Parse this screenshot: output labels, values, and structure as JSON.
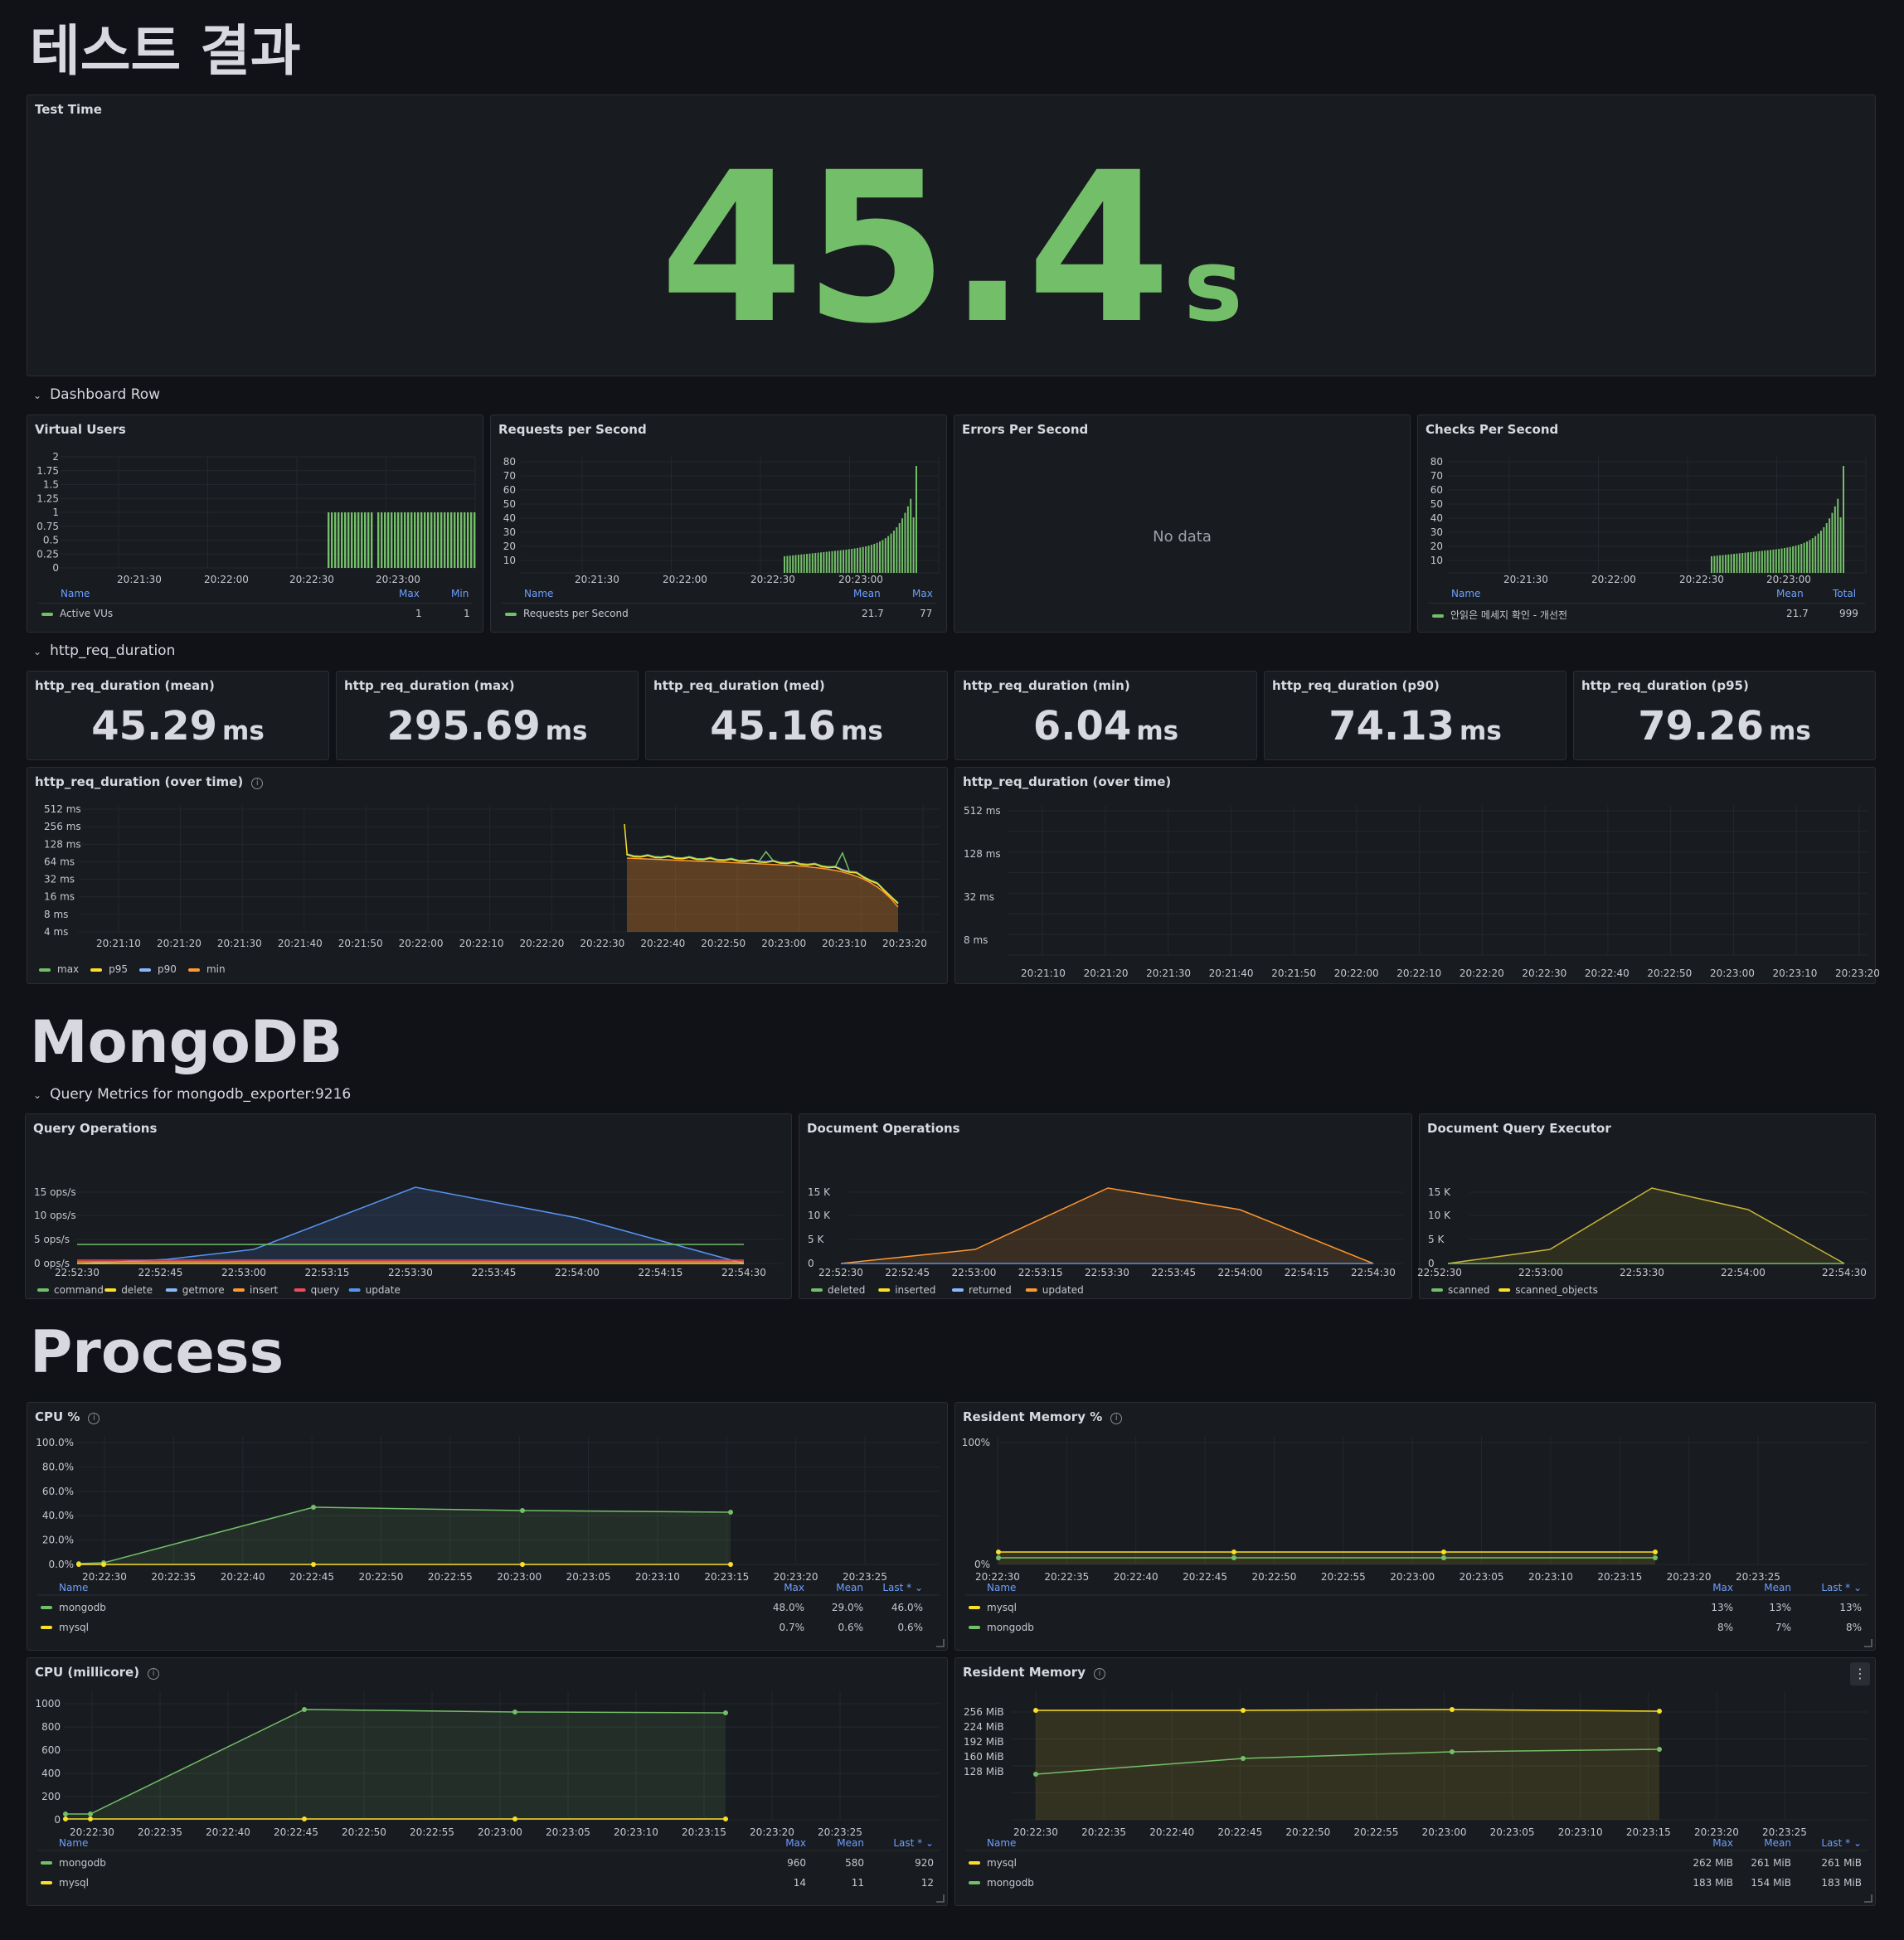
{
  "page_title": "테스트 결과",
  "test_time": {
    "title": "Test Time",
    "value": "45.4",
    "unit": "s",
    "color": "#73bf69"
  },
  "rows": {
    "dashboard": "Dashboard Row",
    "http": "http_req_duration",
    "mongo": "Query Metrics for mongodb_exporter:9216"
  },
  "sections": {
    "mongodb": "MongoDB",
    "process": "Process"
  },
  "vus": {
    "title": "Virtual Users",
    "yticks": [
      "2",
      "1.75",
      "1.5",
      "1.25",
      "1",
      "0.75",
      "0.5",
      "0.25",
      "0"
    ],
    "xticks": [
      "20:21:30",
      "20:22:00",
      "20:22:30",
      "20:23:00"
    ],
    "legend": {
      "h_name": "Name",
      "h1": "Max",
      "h2": "Min",
      "name": "Active VUs",
      "v1": "1",
      "v2": "1"
    }
  },
  "rps": {
    "title": "Requests per Second",
    "yticks": [
      "80",
      "70",
      "60",
      "50",
      "40",
      "30",
      "20",
      "10"
    ],
    "xticks": [
      "20:21:30",
      "20:22:00",
      "20:22:30",
      "20:23:00"
    ],
    "legend": {
      "h_name": "Name",
      "h1": "Mean",
      "h2": "Max",
      "name": "Requests per Second",
      "v1": "21.7",
      "v2": "77"
    }
  },
  "eps": {
    "title": "Errors Per Second",
    "nodata": "No data"
  },
  "cps": {
    "title": "Checks Per Second",
    "yticks": [
      "80",
      "70",
      "60",
      "50",
      "40",
      "30",
      "20",
      "10"
    ],
    "xticks": [
      "20:21:30",
      "20:22:00",
      "20:22:30",
      "20:23:00"
    ],
    "legend": {
      "h_name": "Name",
      "h1": "Mean",
      "h2": "Total",
      "name": "안읽은 메세지 확인 - 개선전",
      "v1": "21.7",
      "v2": "999"
    }
  },
  "stats": [
    {
      "title": "http_req_duration (mean)",
      "value": "45.29",
      "unit": "ms"
    },
    {
      "title": "http_req_duration (max)",
      "value": "295.69",
      "unit": "ms"
    },
    {
      "title": "http_req_duration (med)",
      "value": "45.16",
      "unit": "ms"
    },
    {
      "title": "http_req_duration (min)",
      "value": "6.04",
      "unit": "ms"
    },
    {
      "title": "http_req_duration (p90)",
      "value": "74.13",
      "unit": "ms"
    },
    {
      "title": "http_req_duration (p95)",
      "value": "79.26",
      "unit": "ms"
    }
  ],
  "overtime": {
    "title": "http_req_duration (over time)",
    "yticks": [
      "512 ms",
      "256 ms",
      "128 ms",
      "64 ms",
      "32 ms",
      "16 ms",
      "8 ms",
      "4 ms"
    ],
    "xticks": [
      "20:21:10",
      "20:21:20",
      "20:21:30",
      "20:21:40",
      "20:21:50",
      "20:22:00",
      "20:22:10",
      "20:22:20",
      "20:22:30",
      "20:22:40",
      "20:22:50",
      "20:23:00",
      "20:23:10",
      "20:23:20"
    ],
    "legend": [
      "max",
      "p95",
      "p90",
      "min"
    ]
  },
  "heatmap": {
    "title": "http_req_duration (over time)",
    "yticks": [
      "512 ms",
      "128 ms",
      "32 ms",
      "8 ms"
    ],
    "xticks": [
      "20:21:10",
      "20:21:20",
      "20:21:30",
      "20:21:40",
      "20:21:50",
      "20:22:00",
      "20:22:10",
      "20:22:20",
      "20:22:30",
      "20:22:40",
      "20:22:50",
      "20:23:00",
      "20:23:10",
      "20:23:20"
    ]
  },
  "query_ops": {
    "title": "Query Operations",
    "yticks": [
      "15 ops/s",
      "10 ops/s",
      "5 ops/s",
      "0 ops/s"
    ],
    "xticks": [
      "22:52:30",
      "22:52:45",
      "22:53:00",
      "22:53:15",
      "22:53:30",
      "22:53:45",
      "22:54:00",
      "22:54:15",
      "22:54:30"
    ],
    "legend": [
      "command",
      "delete",
      "getmore",
      "insert",
      "query",
      "update"
    ]
  },
  "doc_ops": {
    "title": "Document Operations",
    "yticks": [
      "15 K",
      "10 K",
      "5 K",
      "0"
    ],
    "xticks": [
      "22:52:30",
      "22:52:45",
      "22:53:00",
      "22:53:15",
      "22:53:30",
      "22:53:45",
      "22:54:00",
      "22:54:15",
      "22:54:30"
    ],
    "legend": [
      "deleted",
      "inserted",
      "returned",
      "updated"
    ]
  },
  "doc_query": {
    "title": "Document Query Executor",
    "yticks": [
      "15 K",
      "10 K",
      "5 K",
      "0"
    ],
    "xticks": [
      "22:52:30",
      "22:53:00",
      "22:53:30",
      "22:54:00",
      "22:54:30"
    ],
    "legend": [
      "scanned",
      "scanned_objects"
    ]
  },
  "cpu_pct": {
    "title": "CPU %",
    "yticks": [
      "100.0%",
      "80.0%",
      "60.0%",
      "40.0%",
      "20.0%",
      "0.0%"
    ],
    "xticks": [
      "20:22:30",
      "20:22:35",
      "20:22:40",
      "20:22:45",
      "20:22:50",
      "20:22:55",
      "20:23:00",
      "20:23:05",
      "20:23:10",
      "20:23:15",
      "20:23:20",
      "20:23:25"
    ],
    "legend": {
      "h_name": "Name",
      "h1": "Max",
      "h2": "Mean",
      "h3": "Last *",
      "rows": [
        {
          "name": "mongodb",
          "v1": "48.0%",
          "v2": "29.0%",
          "v3": "46.0%"
        },
        {
          "name": "mysql",
          "v1": "0.7%",
          "v2": "0.6%",
          "v3": "0.6%"
        }
      ]
    }
  },
  "mem_pct": {
    "title": "Resident Memory %",
    "yticks": [
      "100%",
      "0%"
    ],
    "xticks": [
      "20:22:30",
      "20:22:35",
      "20:22:40",
      "20:22:45",
      "20:22:50",
      "20:22:55",
      "20:23:00",
      "20:23:05",
      "20:23:10",
      "20:23:15",
      "20:23:20",
      "20:23:25"
    ],
    "legend": {
      "h_name": "Name",
      "h1": "Max",
      "h2": "Mean",
      "h3": "Last *",
      "rows": [
        {
          "name": "mysql",
          "v1": "13%",
          "v2": "13%",
          "v3": "13%"
        },
        {
          "name": "mongodb",
          "v1": "8%",
          "v2": "7%",
          "v3": "8%"
        }
      ]
    }
  },
  "cpu_mc": {
    "title": "CPU (millicore)",
    "yticks": [
      "1000",
      "800",
      "600",
      "400",
      "200",
      "0"
    ],
    "xticks": [
      "20:22:30",
      "20:22:35",
      "20:22:40",
      "20:22:45",
      "20:22:50",
      "20:22:55",
      "20:23:00",
      "20:23:05",
      "20:23:10",
      "20:23:15",
      "20:23:20",
      "20:23:25"
    ],
    "legend": {
      "h_name": "Name",
      "h1": "Max",
      "h2": "Mean",
      "h3": "Last *",
      "rows": [
        {
          "name": "mongodb",
          "v1": "960",
          "v2": "580",
          "v3": "920"
        },
        {
          "name": "mysql",
          "v1": "14",
          "v2": "11",
          "v3": "12"
        }
      ]
    }
  },
  "mem": {
    "title": "Resident Memory",
    "yticks": [
      "256 MiB",
      "224 MiB",
      "192 MiB",
      "160 MiB",
      "128 MiB"
    ],
    "xticks": [
      "20:22:30",
      "20:22:35",
      "20:22:40",
      "20:22:45",
      "20:22:50",
      "20:22:55",
      "20:23:00",
      "20:23:05",
      "20:23:10",
      "20:23:15",
      "20:23:20",
      "20:23:25"
    ],
    "legend": {
      "h_name": "Name",
      "h1": "Max",
      "h2": "Mean",
      "h3": "Last *",
      "rows": [
        {
          "name": "mysql",
          "v1": "262 MiB",
          "v2": "261 MiB",
          "v3": "261 MiB"
        },
        {
          "name": "mongodb",
          "v1": "183 MiB",
          "v2": "154 MiB",
          "v3": "183 MiB"
        }
      ]
    }
  },
  "colors": {
    "green": "#73bf69",
    "yellow": "#fade2a",
    "blue": "#5794f2",
    "orange": "#ff9830",
    "red": "#f2495c",
    "lightblue": "#8ab8ff"
  }
}
